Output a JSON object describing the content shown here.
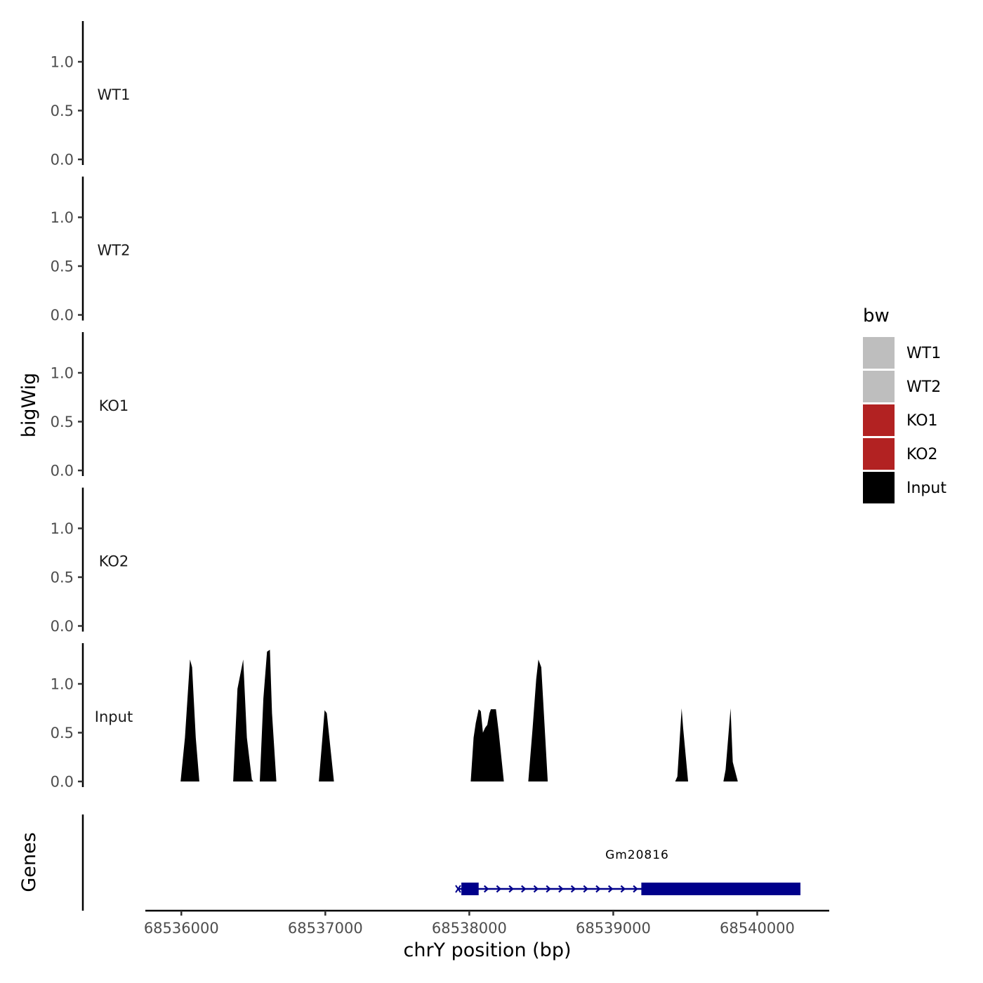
{
  "chart_data": {
    "type": "area",
    "ylabel": "bigWig",
    "xlabel": "chrY position (bp)",
    "genes_ylabel": "Genes",
    "xlim": [
      68535750,
      68540500
    ],
    "x_ticks": [
      68536000,
      68537000,
      68538000,
      68539000,
      68540000
    ],
    "x_tick_labels": [
      "68536000",
      "68537000",
      "68538000",
      "68539000",
      "68540000"
    ],
    "ylim": [
      0,
      1.4
    ],
    "y_ticks": [
      0,
      0.5,
      1.0
    ],
    "y_tick_labels": [
      "0.0",
      "0.5",
      "1.0"
    ],
    "panels": [
      {
        "name": "WT1",
        "color": "#bebebe",
        "x": [],
        "y": []
      },
      {
        "name": "WT2",
        "color": "#bebebe",
        "x": [],
        "y": []
      },
      {
        "name": "KO1",
        "color": "#b22222",
        "x": [],
        "y": []
      },
      {
        "name": "KO2",
        "color": "#b22222",
        "x": [],
        "y": []
      },
      {
        "name": "Input",
        "color": "#000000",
        "x": [
          68535995,
          68536025,
          68536060,
          68536075,
          68536100,
          68536125,
          68536360,
          68536390,
          68536430,
          68536455,
          68536475,
          68536490,
          68536500,
          68536545,
          68536570,
          68536595,
          68536615,
          68536630,
          68536660,
          68536955,
          68536980,
          68536995,
          68537010,
          68537060,
          68538010,
          68538030,
          68538045,
          68538065,
          68538080,
          68538095,
          68538110,
          68538125,
          68538140,
          68538150,
          68538185,
          68538205,
          68538240,
          68538410,
          68538440,
          68538465,
          68538480,
          68538500,
          68538545,
          68539430,
          68539445,
          68539475,
          68539485,
          68539520,
          68539765,
          68539780,
          68539815,
          68539830,
          68539865
        ],
        "y": [
          0,
          0.45,
          1.25,
          1.17,
          0.45,
          0,
          0,
          0.95,
          1.25,
          0.45,
          0.2,
          0.02,
          0,
          0,
          0.85,
          1.33,
          1.35,
          0.7,
          0,
          0,
          0.45,
          0.73,
          0.7,
          0,
          0,
          0.45,
          0.6,
          0.74,
          0.72,
          0.5,
          0.55,
          0.58,
          0.7,
          0.74,
          0.74,
          0.5,
          0,
          0,
          0.55,
          1.05,
          1.25,
          1.17,
          0,
          0,
          0.05,
          0.75,
          0.55,
          0,
          0,
          0.12,
          0.75,
          0.2,
          0
        ]
      }
    ],
    "genes": [
      {
        "name": "Gm20816",
        "color": "#00008b",
        "start": 68537925,
        "end": 68540300,
        "exons": [
          [
            68537945,
            68538065
          ],
          [
            68539195,
            68540300
          ]
        ]
      }
    ],
    "legend": {
      "title": "bw",
      "position": "right",
      "items": [
        {
          "label": "WT1",
          "color": "#bebebe"
        },
        {
          "label": "WT2",
          "color": "#bebebe"
        },
        {
          "label": "KO1",
          "color": "#b22222"
        },
        {
          "label": "KO2",
          "color": "#b22222"
        },
        {
          "label": "Input",
          "color": "#000000"
        }
      ]
    },
    "grid": false
  }
}
